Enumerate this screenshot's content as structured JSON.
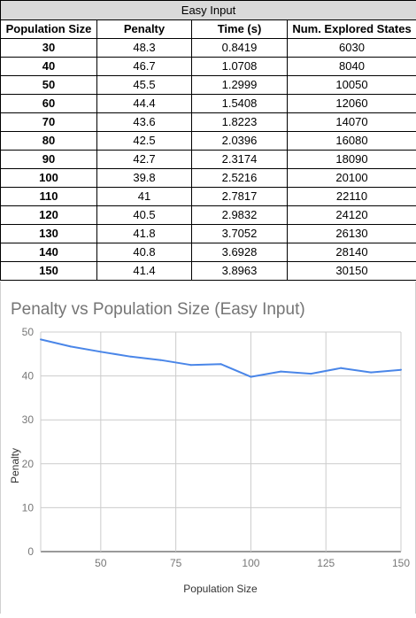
{
  "table": {
    "caption": "Easy Input",
    "headers": [
      "Population Size",
      "Penalty",
      "Time (s)",
      "Num. Explored States"
    ],
    "rows": [
      [
        "30",
        "48.3",
        "0.8419",
        "6030"
      ],
      [
        "40",
        "46.7",
        "1.0708",
        "8040"
      ],
      [
        "50",
        "45.5",
        "1.2999",
        "10050"
      ],
      [
        "60",
        "44.4",
        "1.5408",
        "12060"
      ],
      [
        "70",
        "43.6",
        "1.8223",
        "14070"
      ],
      [
        "80",
        "42.5",
        "2.0396",
        "16080"
      ],
      [
        "90",
        "42.7",
        "2.3174",
        "18090"
      ],
      [
        "100",
        "39.8",
        "2.5216",
        "20100"
      ],
      [
        "110",
        "41",
        "2.7817",
        "22110"
      ],
      [
        "120",
        "40.5",
        "2.9832",
        "24120"
      ],
      [
        "130",
        "41.8",
        "3.7052",
        "26130"
      ],
      [
        "140",
        "40.8",
        "3.6928",
        "28140"
      ],
      [
        "150",
        "41.4",
        "3.8963",
        "30150"
      ]
    ]
  },
  "chart_data": {
    "type": "line",
    "title": "Penalty vs Population Size (Easy Input)",
    "xlabel": "Population Size",
    "ylabel": "Penalty",
    "x": [
      30,
      40,
      50,
      60,
      70,
      80,
      90,
      100,
      110,
      120,
      130,
      140,
      150
    ],
    "series": [
      {
        "values": [
          48.3,
          46.7,
          45.5,
          44.4,
          43.6,
          42.5,
          42.7,
          39.8,
          41,
          40.5,
          41.8,
          40.8,
          41.4
        ]
      }
    ],
    "xlim": [
      30,
      150
    ],
    "ylim": [
      0,
      50
    ],
    "xticks": [
      50,
      75,
      100,
      125,
      150
    ],
    "yticks": [
      0,
      10,
      20,
      30,
      40,
      50
    ],
    "grid": true,
    "legend": "none",
    "line_color": "#4a86e8",
    "grid_color": "#cccccc"
  }
}
